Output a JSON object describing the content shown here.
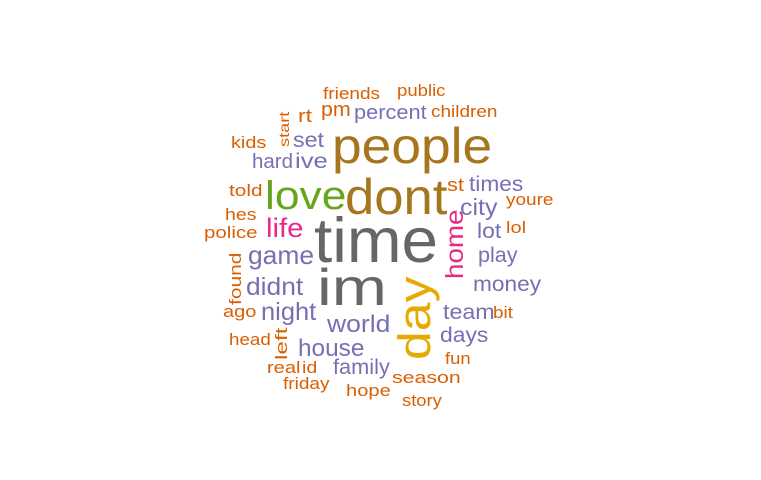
{
  "colors": {
    "orange": "#D95F02",
    "purple": "#7570B3",
    "gold": "#A6761D",
    "grey": "#666666",
    "green": "#66A61E",
    "magenta": "#E7298A",
    "yellow": "#E6AB02"
  },
  "words": [
    {
      "text": "friends",
      "color": "orange"
    },
    {
      "text": "public",
      "color": "orange"
    },
    {
      "text": "pm",
      "color": "orange"
    },
    {
      "text": "percent",
      "color": "purple"
    },
    {
      "text": "children",
      "color": "orange"
    },
    {
      "text": "rt",
      "color": "orange"
    },
    {
      "text": "start",
      "color": "orange"
    },
    {
      "text": "kids",
      "color": "orange"
    },
    {
      "text": "set",
      "color": "purple"
    },
    {
      "text": "people",
      "color": "gold"
    },
    {
      "text": "hard",
      "color": "purple"
    },
    {
      "text": "ive",
      "color": "purple"
    },
    {
      "text": "love",
      "color": "green"
    },
    {
      "text": "dont",
      "color": "gold"
    },
    {
      "text": "told",
      "color": "orange"
    },
    {
      "text": "st",
      "color": "orange"
    },
    {
      "text": "times",
      "color": "purple"
    },
    {
      "text": "youre",
      "color": "orange"
    },
    {
      "text": "hes",
      "color": "orange"
    },
    {
      "text": "city",
      "color": "purple"
    },
    {
      "text": "life",
      "color": "magenta"
    },
    {
      "text": "time",
      "color": "grey"
    },
    {
      "text": "police",
      "color": "orange"
    },
    {
      "text": "lot",
      "color": "purple"
    },
    {
      "text": "lol",
      "color": "orange"
    },
    {
      "text": "home",
      "color": "magenta"
    },
    {
      "text": "game",
      "color": "purple"
    },
    {
      "text": "play",
      "color": "purple"
    },
    {
      "text": "found",
      "color": "orange"
    },
    {
      "text": "im",
      "color": "grey"
    },
    {
      "text": "didnt",
      "color": "purple"
    },
    {
      "text": "day",
      "color": "yellow"
    },
    {
      "text": "money",
      "color": "purple"
    },
    {
      "text": "night",
      "color": "purple"
    },
    {
      "text": "team",
      "color": "purple"
    },
    {
      "text": "bit",
      "color": "orange"
    },
    {
      "text": "ago",
      "color": "orange"
    },
    {
      "text": "world",
      "color": "purple"
    },
    {
      "text": "days",
      "color": "purple"
    },
    {
      "text": "head",
      "color": "orange"
    },
    {
      "text": "left",
      "color": "orange"
    },
    {
      "text": "house",
      "color": "purple"
    },
    {
      "text": "fun",
      "color": "orange"
    },
    {
      "text": "real",
      "color": "orange"
    },
    {
      "text": "id",
      "color": "orange"
    },
    {
      "text": "family",
      "color": "purple"
    },
    {
      "text": "friday",
      "color": "orange"
    },
    {
      "text": "season",
      "color": "orange"
    },
    {
      "text": "hope",
      "color": "orange"
    },
    {
      "text": "story",
      "color": "orange"
    }
  ]
}
